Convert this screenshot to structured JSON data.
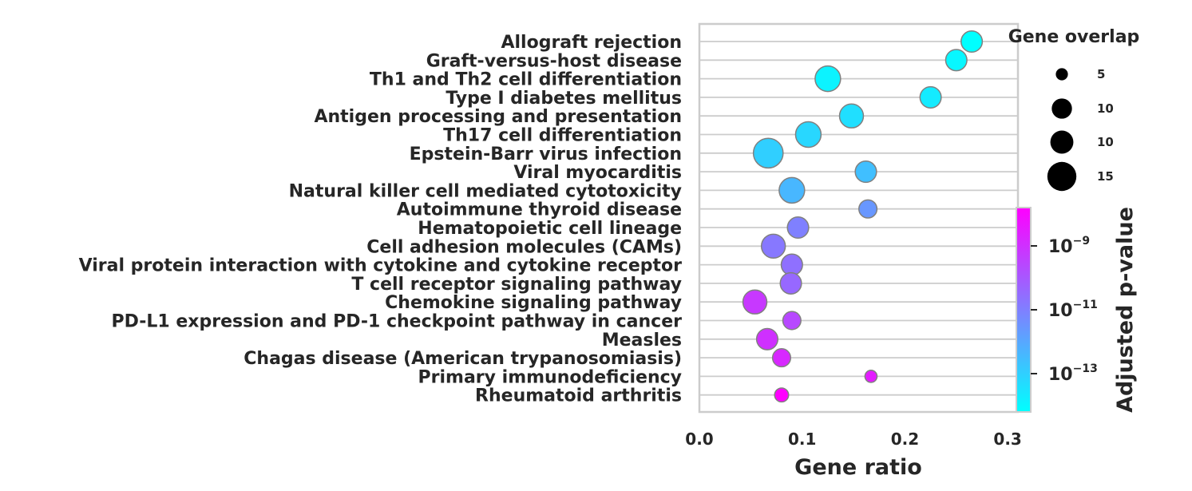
{
  "chart_data": {
    "type": "scatter",
    "xlabel": "Gene ratio",
    "xlim": [
      0.0,
      0.31
    ],
    "xticks": [
      "0.0",
      "0.1",
      "0.2",
      "0.3"
    ],
    "xtick_values": [
      0.0,
      0.1,
      0.2,
      0.3
    ],
    "categories": [
      "Allograft rejection",
      "Graft-versus-host disease",
      "Th1 and Th2 cell differentiation",
      "Type I diabetes mellitus",
      "Antigen processing and presentation",
      "Th17 cell differentiation",
      "Epstein-Barr virus infection",
      "Viral myocarditis",
      "Natural killer cell mediated cytotoxicity",
      "Autoimmune thyroid disease",
      "Hematopoietic cell lineage",
      "Cell adhesion molecules (CAMs)",
      "Viral protein interaction with cytokine and cytokine receptor",
      "T cell receptor signaling pathway",
      "Chemokine signaling pathway",
      "PD-L1 expression and PD-1 checkpoint pathway in cancer",
      "Measles",
      "Chagas disease (American trypanosomiasis)",
      "Primary immunodeficiency",
      "Rheumatoid arthritis"
    ],
    "gene_ratio": [
      0.265,
      0.25,
      0.125,
      0.225,
      0.148,
      0.106,
      0.067,
      0.162,
      0.09,
      0.164,
      0.096,
      0.072,
      0.09,
      0.089,
      0.054,
      0.09,
      0.066,
      0.08,
      0.167,
      0.08
    ],
    "gene_overlap": [
      9,
      9,
      14,
      9,
      12,
      14,
      20,
      9,
      14,
      6,
      9,
      12,
      9,
      9,
      12,
      6,
      9,
      6,
      2,
      3
    ],
    "log10_padj": [
      -14.2,
      -14.0,
      -13.9,
      -13.7,
      -13.4,
      -13.2,
      -13.0,
      -12.6,
      -12.4,
      -11.6,
      -11.0,
      -10.8,
      -10.6,
      -10.4,
      -9.2,
      -9.6,
      -9.0,
      -8.8,
      -8.5,
      -7.8
    ],
    "size_legend": {
      "title": "Gene overlap",
      "entries": [
        {
          "label": "5",
          "value": 2
        },
        {
          "label": "10",
          "value": 8
        },
        {
          "label": "10",
          "value": 11
        },
        {
          "label": "15",
          "value": 19
        }
      ]
    },
    "colorbar": {
      "label": "Adjusted p-value",
      "colormap": "cool",
      "range_log10": [
        -14.2,
        -7.8
      ],
      "ticks": [
        {
          "base": "10",
          "exp": "−9",
          "value": -9
        },
        {
          "base": "10",
          "exp": "−11",
          "value": -11
        },
        {
          "base": "10",
          "exp": "−13",
          "value": -13
        }
      ]
    },
    "colors": {
      "low": "#00ffff",
      "high": "#ff00ff",
      "grid": "#cccccc",
      "marker_edge": "#808080",
      "text": "#262626"
    }
  }
}
